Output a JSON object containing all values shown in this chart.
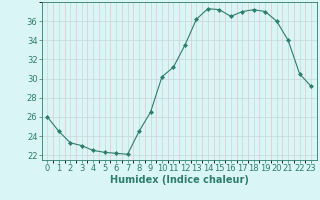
{
  "x": [
    0,
    1,
    2,
    3,
    4,
    5,
    6,
    7,
    8,
    9,
    10,
    11,
    12,
    13,
    14,
    15,
    16,
    17,
    18,
    19,
    20,
    21,
    22,
    23
  ],
  "y": [
    26.0,
    24.5,
    23.3,
    23.0,
    22.5,
    22.3,
    22.2,
    22.1,
    24.5,
    26.5,
    30.2,
    31.2,
    33.5,
    36.2,
    37.3,
    37.2,
    36.5,
    37.0,
    37.2,
    37.0,
    36.0,
    34.0,
    30.5,
    29.2
  ],
  "line_color": "#2e7d6e",
  "marker": "D",
  "markersize": 2.0,
  "linewidth": 0.8,
  "bg_color": "#d9f5f5",
  "grid_major_color": "#c8d8d8",
  "grid_minor_color": "#e0eaea",
  "xlabel": "Humidex (Indice chaleur)",
  "xlim": [
    -0.5,
    23.5
  ],
  "ylim": [
    21.5,
    38.0
  ],
  "yticks": [
    22,
    24,
    26,
    28,
    30,
    32,
    34,
    36
  ],
  "xticks": [
    0,
    1,
    2,
    3,
    4,
    5,
    6,
    7,
    8,
    9,
    10,
    11,
    12,
    13,
    14,
    15,
    16,
    17,
    18,
    19,
    20,
    21,
    22,
    23
  ],
  "tick_fontsize": 6.0,
  "xlabel_fontsize": 7.0
}
